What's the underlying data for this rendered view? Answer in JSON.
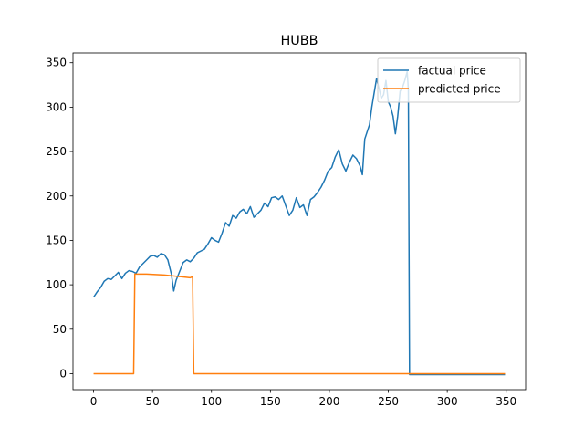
{
  "chart_data": {
    "type": "line",
    "title": "HUBB",
    "xlim": [
      -17.45,
      366.45
    ],
    "ylim": [
      -18,
      361
    ],
    "xticks": [
      0,
      50,
      100,
      150,
      200,
      250,
      300,
      350
    ],
    "yticks": [
      0,
      50,
      100,
      150,
      200,
      250,
      300,
      350
    ],
    "legend": "upper right",
    "series": [
      {
        "name": "factual price",
        "color": "#1f77b4",
        "x": [
          0,
          3,
          6,
          9,
          12,
          15,
          18,
          21,
          24,
          27,
          30,
          33,
          36,
          39,
          42,
          45,
          48,
          51,
          54,
          57,
          60,
          63,
          66,
          68,
          70,
          73,
          76,
          79,
          82,
          85,
          88,
          91,
          94,
          97,
          100,
          103,
          106,
          109,
          112,
          115,
          118,
          121,
          124,
          127,
          130,
          133,
          136,
          139,
          142,
          145,
          148,
          151,
          154,
          157,
          160,
          163,
          166,
          169,
          172,
          175,
          178,
          181,
          184,
          187,
          190,
          193,
          196,
          199,
          202,
          205,
          208,
          211,
          214,
          217,
          220,
          223,
          226,
          228,
          230,
          232,
          234,
          236,
          238,
          240,
          242,
          244,
          246,
          248,
          250,
          252,
          254,
          256,
          258,
          260,
          262,
          264,
          266,
          267,
          268,
          349
        ],
        "values": [
          86,
          92,
          97,
          104,
          107,
          106,
          110,
          114,
          107,
          113,
          116,
          115,
          113,
          120,
          124,
          128,
          132,
          133,
          131,
          135,
          134,
          128,
          112,
          93,
          105,
          115,
          125,
          128,
          126,
          130,
          136,
          138,
          140,
          146,
          153,
          150,
          148,
          158,
          170,
          166,
          178,
          175,
          182,
          185,
          180,
          188,
          176,
          180,
          184,
          192,
          188,
          198,
          199,
          196,
          200,
          189,
          178,
          184,
          198,
          187,
          190,
          178,
          196,
          199,
          204,
          210,
          218,
          228,
          232,
          244,
          252,
          236,
          228,
          238,
          246,
          242,
          234,
          224,
          264,
          272,
          280,
          300,
          316,
          332,
          322,
          310,
          314,
          330,
          306,
          300,
          290,
          270,
          290,
          318,
          322,
          330,
          340,
          320,
          -1,
          -1
        ]
      },
      {
        "name": "predicted price",
        "color": "#ff7f0e",
        "x": [
          0,
          34,
          35,
          45,
          60,
          75,
          82,
          84,
          85,
          349
        ],
        "values": [
          0,
          0,
          112,
          112,
          111,
          109,
          108,
          109,
          0,
          0
        ]
      }
    ]
  }
}
